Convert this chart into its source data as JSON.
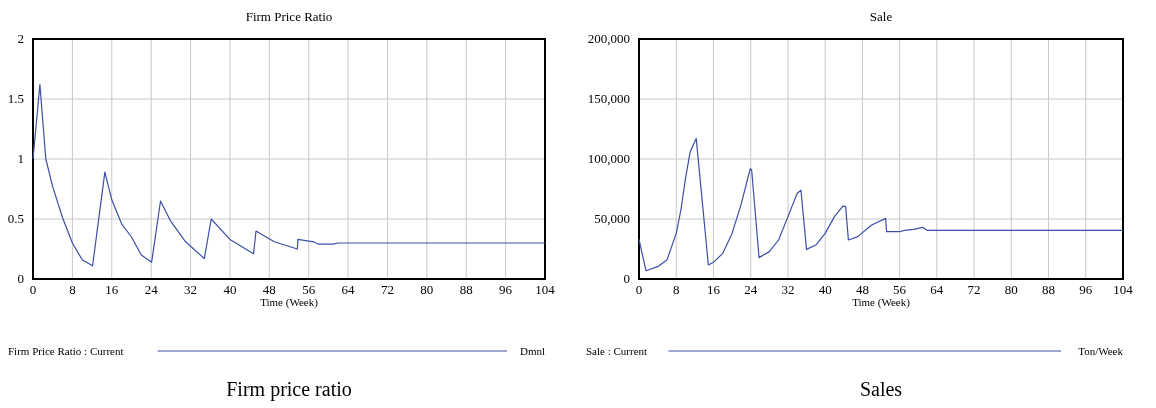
{
  "chart_data": [
    {
      "type": "line",
      "title": "Firm Price Ratio",
      "xlabel": "Time (Week)",
      "xlim": [
        0,
        104
      ],
      "xticks": [
        0,
        8,
        16,
        24,
        32,
        40,
        48,
        56,
        64,
        72,
        80,
        88,
        96,
        104
      ],
      "ylim": [
        0,
        2
      ],
      "yticks": [
        0,
        0.5,
        1,
        1.5,
        2
      ],
      "grid": true,
      "legend": "bottom",
      "annotations": [
        "Dmnl",
        "Firm price ratio"
      ],
      "series": [
        {
          "name": "Firm Price Ratio : Current",
          "color": "#3b4fa8",
          "x": [
            0,
            1.4,
            2.6,
            4,
            6,
            8,
            10,
            12.1,
            14.6,
            16,
            18,
            20,
            22,
            24.1,
            25.9,
            28,
            31,
            34.8,
            36.2,
            40,
            44.8,
            45.3,
            49,
            53.7,
            53.8,
            57,
            58,
            61,
            62,
            104
          ],
          "values": [
            1.0,
            1.62,
            1.0,
            0.77,
            0.51,
            0.3,
            0.16,
            0.11,
            0.89,
            0.66,
            0.46,
            0.35,
            0.2,
            0.14,
            0.65,
            0.48,
            0.31,
            0.17,
            0.5,
            0.33,
            0.21,
            0.4,
            0.31,
            0.25,
            0.33,
            0.31,
            0.29,
            0.29,
            0.3,
            0.3
          ]
        }
      ]
    },
    {
      "type": "line",
      "title": "Sale",
      "xlabel": "Time (Week)",
      "xlim": [
        0,
        104
      ],
      "xticks": [
        0,
        8,
        16,
        24,
        32,
        40,
        48,
        56,
        64,
        72,
        80,
        88,
        96,
        104
      ],
      "ylim": [
        0,
        200000
      ],
      "yticks": [
        {
          "value": 0,
          "label": "0"
        },
        {
          "value": 50000,
          "label": "50,000"
        },
        {
          "value": 100000,
          "label": "100,000"
        },
        {
          "value": 150000,
          "label": "150,000"
        },
        {
          "value": 200000,
          "label": "200,000"
        }
      ],
      "grid": true,
      "legend": "bottom",
      "annotations": [
        "Ton/Week",
        "Sales"
      ],
      "series": [
        {
          "name": "Sale : Current",
          "color": "#3b4fa8",
          "x": [
            0,
            1.5,
            4,
            6,
            8,
            9,
            10,
            11,
            12.3,
            14.9,
            16,
            18,
            20,
            22,
            23.9,
            24.2,
            25.8,
            28,
            30,
            32,
            34,
            34.8,
            36,
            38,
            40,
            42,
            43.8,
            44.4,
            45,
            47,
            50,
            53,
            53.2,
            56,
            57,
            59,
            61,
            62,
            104
          ],
          "values": [
            33000,
            6900,
            10300,
            15800,
            38000,
            57500,
            84000,
            106000,
            117000,
            11700,
            13900,
            21400,
            38000,
            63000,
            92000,
            91000,
            17800,
            22800,
            32500,
            52000,
            71400,
            74000,
            24700,
            28300,
            38000,
            52000,
            60800,
            60300,
            32500,
            35300,
            45000,
            50500,
            39400,
            39400,
            40500,
            41400,
            43000,
            40500,
            40500
          ]
        }
      ]
    }
  ]
}
